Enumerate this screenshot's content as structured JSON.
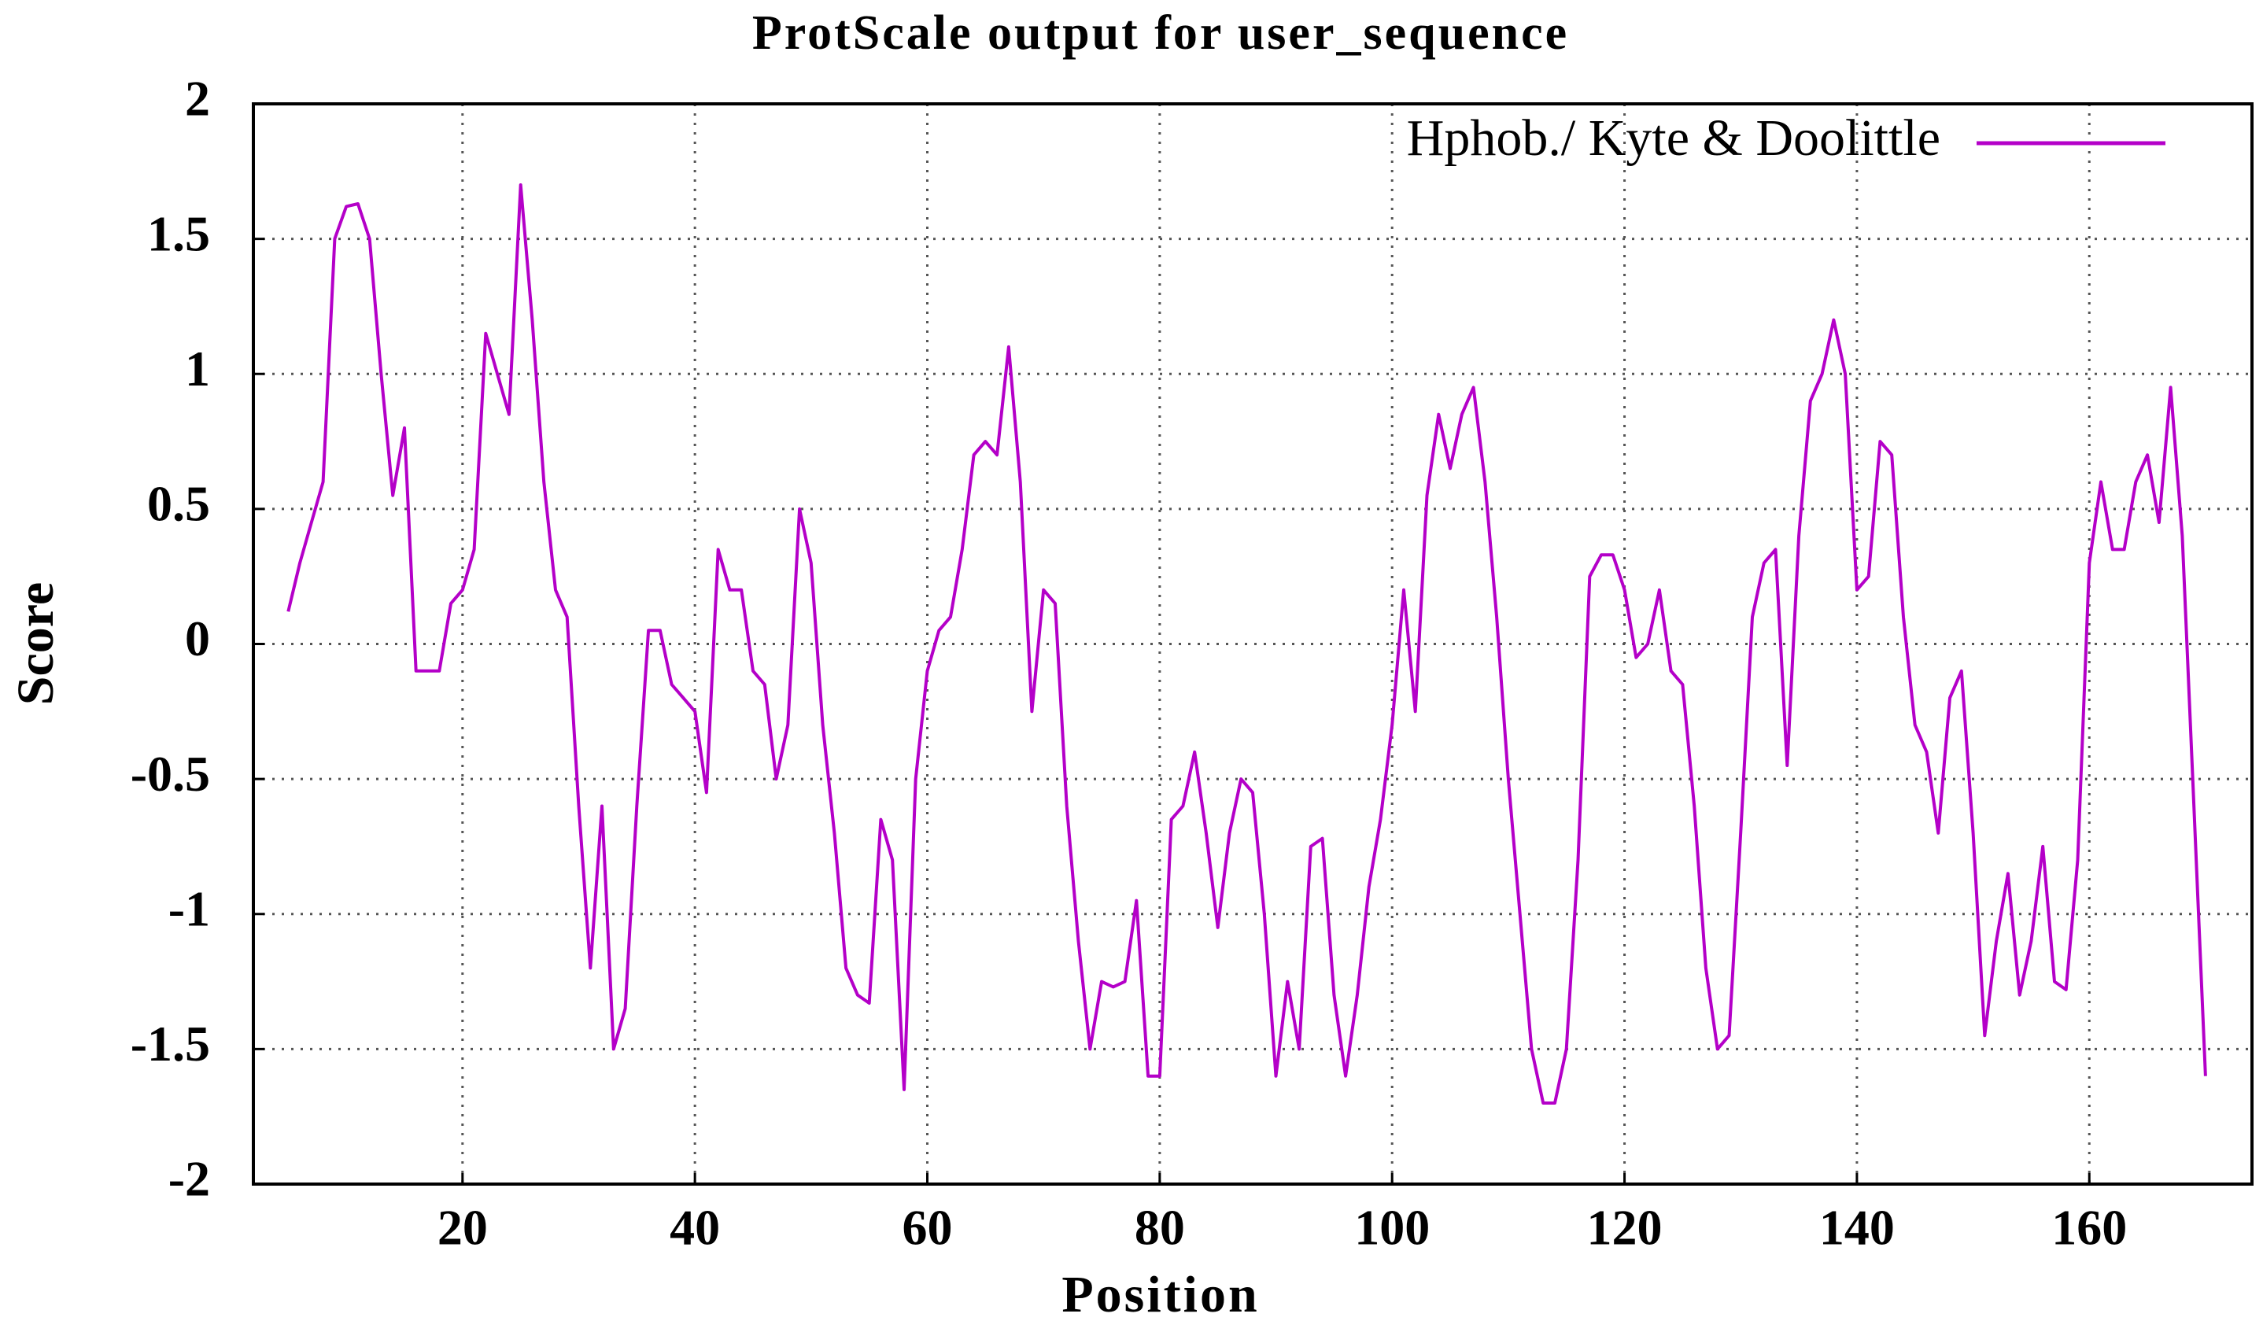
{
  "chart_data": {
    "type": "line",
    "title": "ProtScale output for user_sequence",
    "x_label": "Position",
    "y_label": "Score",
    "x": [
      5,
      6,
      7,
      8,
      9,
      10,
      11,
      12,
      13,
      14,
      15,
      16,
      17,
      18,
      19,
      20,
      21,
      22,
      23,
      24,
      25,
      26,
      27,
      28,
      29,
      30,
      31,
      32,
      33,
      34,
      35,
      36,
      37,
      38,
      39,
      40,
      41,
      42,
      43,
      44,
      45,
      46,
      47,
      48,
      49,
      50,
      51,
      52,
      53,
      54,
      55,
      56,
      57,
      58,
      59,
      60,
      61,
      62,
      63,
      64,
      65,
      66,
      67,
      68,
      69,
      70,
      71,
      72,
      73,
      74,
      75,
      76,
      77,
      78,
      79,
      80,
      81,
      82,
      83,
      84,
      85,
      86,
      87,
      88,
      89,
      90,
      91,
      92,
      93,
      94,
      95,
      96,
      97,
      98,
      99,
      100,
      101,
      102,
      103,
      104,
      105,
      106,
      107,
      108,
      109,
      110,
      111,
      112,
      113,
      114,
      115,
      116,
      117,
      118,
      119,
      120,
      121,
      122,
      123,
      124,
      125,
      126,
      127,
      128,
      129,
      130,
      131,
      132,
      133,
      134,
      135,
      136,
      137,
      138,
      139,
      140,
      141,
      142,
      143,
      144,
      145,
      146,
      147,
      148,
      149,
      150,
      151,
      152,
      153,
      154,
      155,
      156,
      157,
      158,
      159,
      160,
      161,
      162,
      163,
      164,
      165,
      166,
      167,
      168,
      169,
      170
    ],
    "series": [
      {
        "name": "Hphob./ Kyte & Doolittle",
        "color": "#b400c8",
        "values": [
          0.12,
          0.3,
          0.45,
          0.6,
          1.5,
          1.62,
          1.63,
          1.5,
          1.0,
          0.55,
          0.8,
          -0.1,
          -0.1,
          -0.1,
          0.15,
          0.2,
          0.35,
          1.15,
          1.0,
          0.85,
          1.7,
          1.2,
          0.6,
          0.2,
          0.1,
          -0.6,
          -1.2,
          -0.6,
          -1.5,
          -1.35,
          -0.6,
          0.05,
          0.05,
          -0.15,
          -0.2,
          -0.25,
          -0.55,
          0.35,
          0.2,
          0.2,
          -0.1,
          -0.15,
          -0.5,
          -0.3,
          0.5,
          0.3,
          -0.3,
          -0.7,
          -1.2,
          -1.3,
          -1.33,
          -0.65,
          -0.8,
          -1.65,
          -0.5,
          -0.1,
          0.05,
          0.1,
          0.35,
          0.7,
          0.75,
          0.7,
          1.1,
          0.6,
          -0.25,
          0.2,
          0.15,
          -0.6,
          -1.1,
          -1.5,
          -1.25,
          -1.27,
          -1.25,
          -0.95,
          -1.6,
          -1.6,
          -0.65,
          -0.6,
          -0.4,
          -0.7,
          -1.05,
          -0.7,
          -0.5,
          -0.55,
          -1.0,
          -1.6,
          -1.25,
          -1.5,
          -0.75,
          -0.72,
          -1.3,
          -1.6,
          -1.3,
          -0.9,
          -0.65,
          -0.3,
          0.2,
          -0.25,
          0.55,
          0.85,
          0.65,
          0.85,
          0.95,
          0.6,
          0.1,
          -0.5,
          -1.0,
          -1.5,
          -1.7,
          -1.7,
          -1.5,
          -0.8,
          0.25,
          0.33,
          0.33,
          0.2,
          -0.05,
          0.0,
          0.2,
          -0.1,
          -0.15,
          -0.6,
          -1.2,
          -1.5,
          -1.45,
          -0.7,
          0.1,
          0.3,
          0.35,
          -0.45,
          0.4,
          0.9,
          1.0,
          1.2,
          1.0,
          0.2,
          0.25,
          0.75,
          0.7,
          0.1,
          -0.3,
          -0.4,
          -0.7,
          -0.2,
          -0.1,
          -0.7,
          -1.45,
          -1.1,
          -0.85,
          -1.3,
          -1.1,
          -0.75,
          -1.25,
          -1.28,
          -0.8,
          0.3,
          0.6,
          0.35,
          0.35,
          0.6,
          0.7,
          0.45,
          0.95,
          0.4,
          -0.6,
          -1.6
        ]
      }
    ],
    "xlim": [
      2,
      174
    ],
    "xticks": [
      20,
      40,
      60,
      80,
      100,
      120,
      140,
      160
    ],
    "ylim": [
      -2,
      2
    ],
    "yticks": [
      -2,
      -1.5,
      -1,
      -0.5,
      0,
      0.5,
      1,
      1.5,
      2
    ],
    "grid": true,
    "legend": "upper right"
  }
}
